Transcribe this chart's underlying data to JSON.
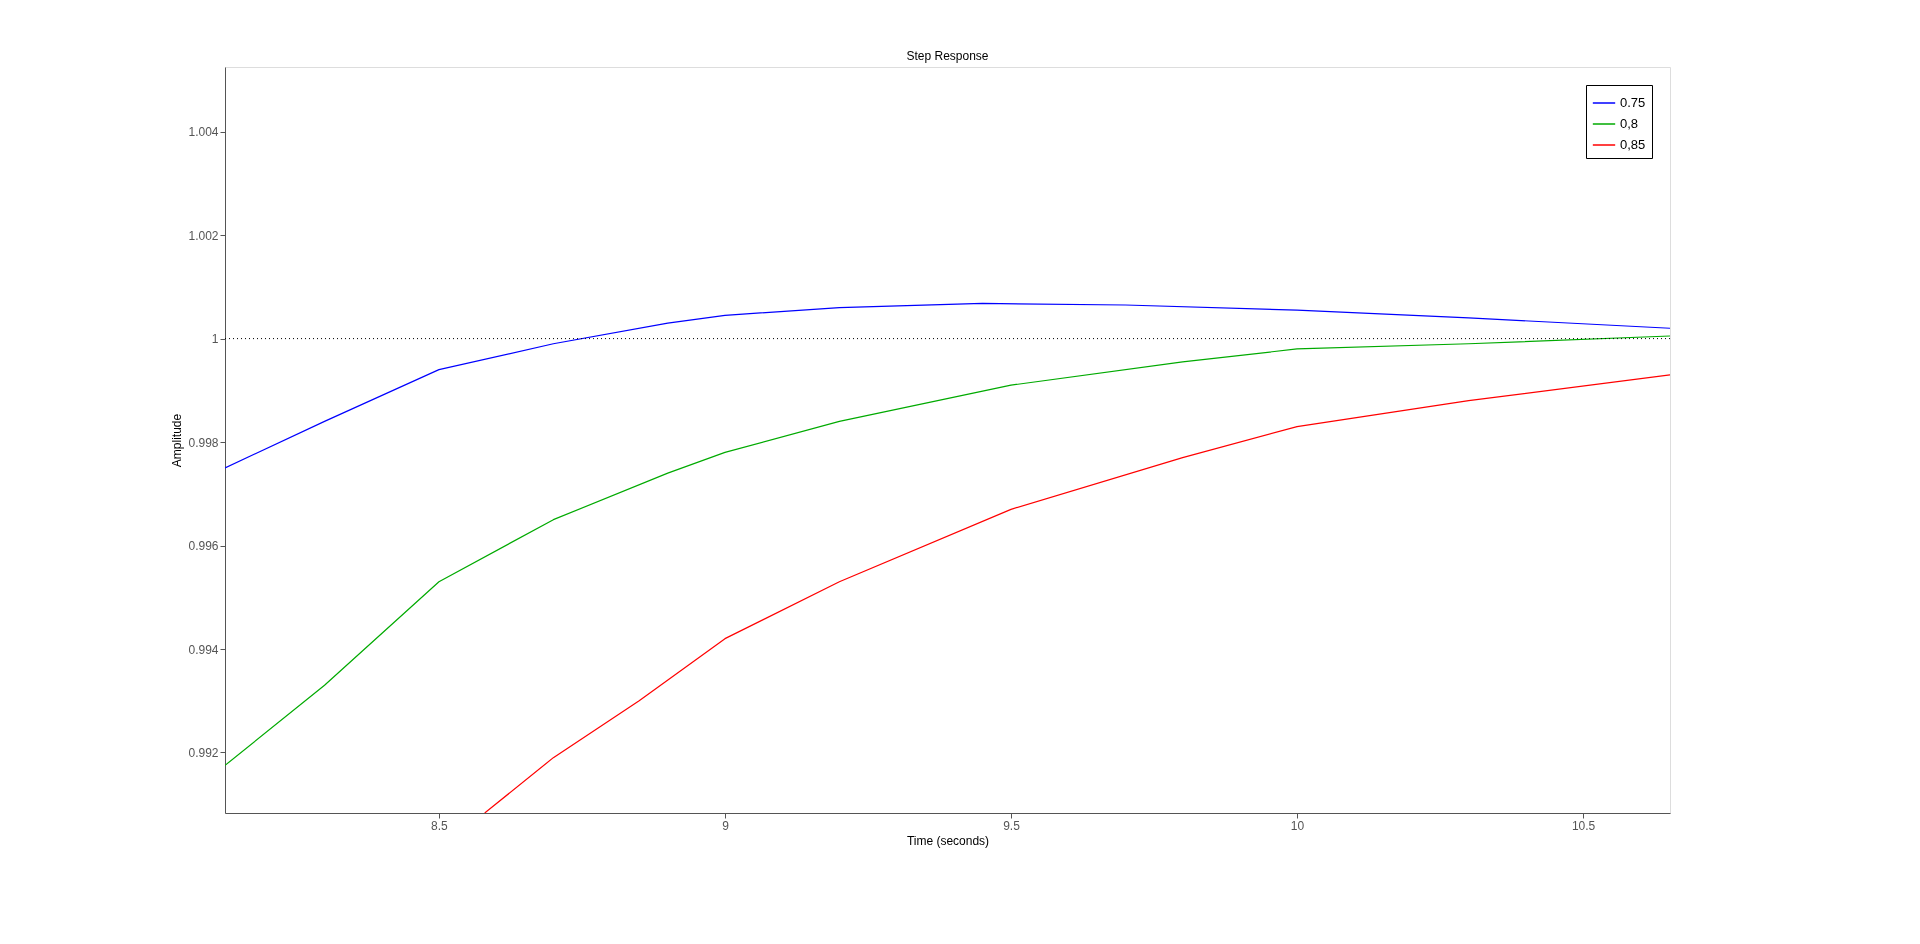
{
  "chart_data": {
    "type": "line",
    "title": "Step Response",
    "xlabel": "Time (seconds)",
    "ylabel": "Amplitude",
    "xlim": [
      8.126,
      10.652
    ],
    "xticks": [
      8.5,
      9,
      9.5,
      10,
      10.5
    ],
    "ylim": [
      0.99083,
      1.00525
    ],
    "yticks": [
      0.992,
      0.994,
      0.996,
      0.998,
      1,
      1.002,
      1.004
    ],
    "grid": false,
    "legend": "top right",
    "line_style": "solid",
    "ref_lines": [
      {
        "axis": "y",
        "value": 1,
        "color": "#000000",
        "line_style": "dotted"
      }
    ],
    "series": [
      {
        "name": "0.75",
        "color": "#0000ff",
        "x": [
          8.126,
          8.3,
          8.5,
          8.7,
          8.9,
          9.0,
          9.2,
          9.45,
          9.7,
          10.0,
          10.3,
          10.652
        ],
        "values": [
          0.9975,
          0.9984,
          0.9994,
          0.9999,
          1.0003,
          1.00045,
          1.0006,
          1.00068,
          1.00065,
          1.00055,
          1.0004,
          1.0002
        ]
      },
      {
        "name": "0,8",
        "color": "#00aa00",
        "x": [
          8.126,
          8.3,
          8.5,
          8.7,
          8.9,
          9.0,
          9.2,
          9.5,
          9.8,
          10.0,
          10.3,
          10.652
        ],
        "values": [
          0.99175,
          0.9933,
          0.9953,
          0.9965,
          0.9974,
          0.9978,
          0.9984,
          0.9991,
          0.99955,
          0.9998,
          0.9999,
          1.00005
        ]
      },
      {
        "name": "0,85",
        "color": "#ff0000",
        "x": [
          8.58,
          8.7,
          8.85,
          9.0,
          9.2,
          9.5,
          9.8,
          10.0,
          10.3,
          10.652
        ],
        "values": [
          0.99083,
          0.9919,
          0.993,
          0.9942,
          0.9953,
          0.9967,
          0.9977,
          0.9983,
          0.9988,
          0.9993
        ]
      }
    ]
  }
}
